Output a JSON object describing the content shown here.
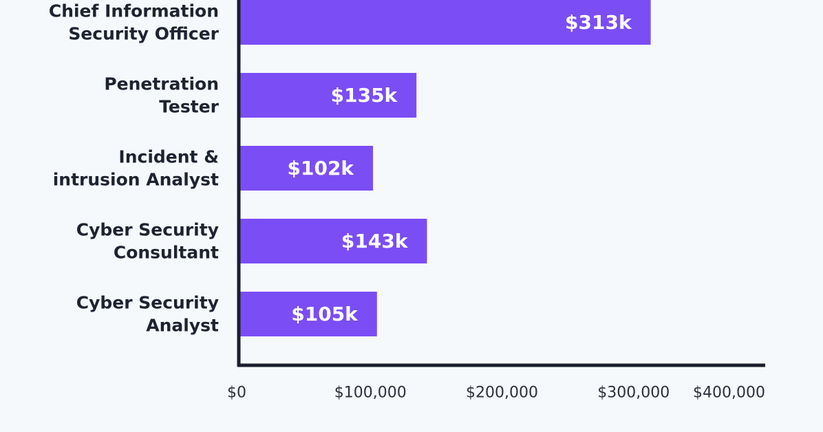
{
  "chart_data": {
    "type": "bar",
    "orientation": "horizontal",
    "categories": [
      [
        "Chief Information",
        "Security Officer"
      ],
      [
        "Penetration",
        "Tester"
      ],
      [
        "Incident &",
        "intrusion Analyst"
      ],
      [
        "Cyber Security",
        "Consultant"
      ],
      [
        "Cyber Security",
        "Analyst"
      ]
    ],
    "values": [
      313000,
      135000,
      102000,
      143000,
      105000
    ],
    "value_labels": [
      "$313k",
      "$135k",
      "$102k",
      "$143k",
      "$105k"
    ],
    "x_ticks": [
      0,
      100000,
      200000,
      300000,
      400000
    ],
    "x_tick_labels": [
      "$0",
      "$100,000",
      "$200,000",
      "$300,000",
      "$400,000"
    ],
    "xlim": [
      0,
      400000
    ],
    "title": "",
    "xlabel": "",
    "ylabel": "",
    "grid": false,
    "legend": "none",
    "bar_color": "#7b4df5",
    "axis_color": "#1a1f2b",
    "background": "#f6f9fc"
  }
}
